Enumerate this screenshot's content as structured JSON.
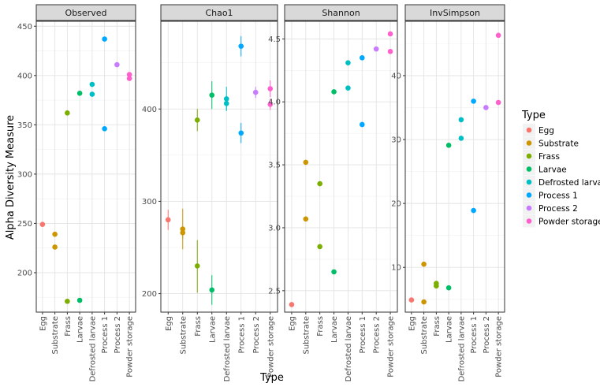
{
  "chart_data": {
    "type": "scatter",
    "xlabel": "Type",
    "ylabel": "Alpha Diversity Measure",
    "categories": [
      "Egg",
      "Substrate",
      "Frass",
      "Larvae",
      "Defrosted larvae",
      "Process 1",
      "Process 2",
      "Powder storage"
    ],
    "legend": {
      "title": "Type",
      "placement": "right",
      "entries": [
        {
          "name": "Egg",
          "color": "#F8766D"
        },
        {
          "name": "Substrate",
          "color": "#CD9600"
        },
        {
          "name": "Frass",
          "color": "#7CAE00"
        },
        {
          "name": "Larvae",
          "color": "#00BE67"
        },
        {
          "name": "Defrosted larvae",
          "color": "#00BFC4"
        },
        {
          "name": "Process 1",
          "color": "#00A9FF"
        },
        {
          "name": "Process 2",
          "color": "#C77CFF"
        },
        {
          "name": "Powder storage",
          "color": "#FF61CC"
        }
      ]
    },
    "panels": [
      {
        "title": "Observed",
        "ylim": [
          160,
          455
        ],
        "yticks": [
          200,
          250,
          300,
          350,
          400,
          450
        ],
        "points": [
          {
            "type": "Egg",
            "y": 249
          },
          {
            "type": "Substrate",
            "y": 239
          },
          {
            "type": "Substrate",
            "y": 226
          },
          {
            "type": "Frass",
            "y": 362
          },
          {
            "type": "Frass",
            "y": 171
          },
          {
            "type": "Larvae",
            "y": 382
          },
          {
            "type": "Larvae",
            "y": 172
          },
          {
            "type": "Defrosted larvae",
            "y": 391
          },
          {
            "type": "Defrosted larvae",
            "y": 381
          },
          {
            "type": "Process 1",
            "y": 437
          },
          {
            "type": "Process 1",
            "y": 346
          },
          {
            "type": "Process 2",
            "y": 411
          },
          {
            "type": "Powder storage",
            "y": 401
          },
          {
            "type": "Powder storage",
            "y": 397
          }
        ]
      },
      {
        "title": "Chao1",
        "ylim": [
          180,
          495
        ],
        "yticks": [
          200,
          300,
          400
        ],
        "points": [
          {
            "type": "Egg",
            "y": 280,
            "err": [
              269,
              291
            ]
          },
          {
            "type": "Substrate",
            "y": 270,
            "err": [
              248,
              292
            ]
          },
          {
            "type": "Substrate",
            "y": 266,
            "err": [
              260,
              272
            ]
          },
          {
            "type": "Frass",
            "y": 388,
            "err": [
              376,
              400
            ]
          },
          {
            "type": "Frass",
            "y": 230,
            "err": [
              201,
              258
            ]
          },
          {
            "type": "Larvae",
            "y": 415,
            "err": [
              400,
              430
            ]
          },
          {
            "type": "Larvae",
            "y": 204,
            "err": [
              188,
              220
            ]
          },
          {
            "type": "Defrosted larvae",
            "y": 411,
            "err": [
              398,
              424
            ]
          },
          {
            "type": "Defrosted larvae",
            "y": 406,
            "err": [
              398,
              414
            ]
          },
          {
            "type": "Process 1",
            "y": 468,
            "err": [
              457,
              479
            ]
          },
          {
            "type": "Process 1",
            "y": 374,
            "err": [
              363,
              385
            ]
          },
          {
            "type": "Process 2",
            "y": 418,
            "err": [
              412,
              424
            ]
          },
          {
            "type": "Powder storage",
            "y": 422,
            "err": [
              413,
              431
            ]
          },
          {
            "type": "Powder storage",
            "y": 405,
            "err": [
              399,
              411
            ]
          }
        ]
      },
      {
        "title": "Shannon",
        "ylim": [
          2.33,
          4.64
        ],
        "yticks": [
          2.5,
          3.0,
          3.5,
          4.0,
          4.5
        ],
        "points": [
          {
            "type": "Egg",
            "y": 2.39
          },
          {
            "type": "Substrate",
            "y": 3.52
          },
          {
            "type": "Substrate",
            "y": 3.07
          },
          {
            "type": "Frass",
            "y": 3.35
          },
          {
            "type": "Frass",
            "y": 2.85
          },
          {
            "type": "Larvae",
            "y": 4.08
          },
          {
            "type": "Larvae",
            "y": 2.65
          },
          {
            "type": "Defrosted larvae",
            "y": 4.31
          },
          {
            "type": "Defrosted larvae",
            "y": 4.11
          },
          {
            "type": "Process 1",
            "y": 4.35
          },
          {
            "type": "Process 1",
            "y": 3.82
          },
          {
            "type": "Process 2",
            "y": 4.42
          },
          {
            "type": "Powder storage",
            "y": 4.54
          },
          {
            "type": "Powder storage",
            "y": 4.4
          }
        ]
      },
      {
        "title": "InvSimpson",
        "ylim": [
          3.0,
          48.5
        ],
        "yticks": [
          10,
          20,
          30,
          40
        ],
        "points": [
          {
            "type": "Egg",
            "y": 4.9
          },
          {
            "type": "Substrate",
            "y": 10.5
          },
          {
            "type": "Substrate",
            "y": 4.6
          },
          {
            "type": "Frass",
            "y": 7.5
          },
          {
            "type": "Frass",
            "y": 7.1
          },
          {
            "type": "Larvae",
            "y": 29.1
          },
          {
            "type": "Larvae",
            "y": 6.8
          },
          {
            "type": "Defrosted larvae",
            "y": 33.1
          },
          {
            "type": "Defrosted larvae",
            "y": 30.2
          },
          {
            "type": "Process 1",
            "y": 36.0
          },
          {
            "type": "Process 1",
            "y": 18.9
          },
          {
            "type": "Process 2",
            "y": 35.0
          },
          {
            "type": "Powder storage",
            "y": 46.3
          },
          {
            "type": "Powder storage",
            "y": 35.8
          }
        ]
      }
    ]
  }
}
